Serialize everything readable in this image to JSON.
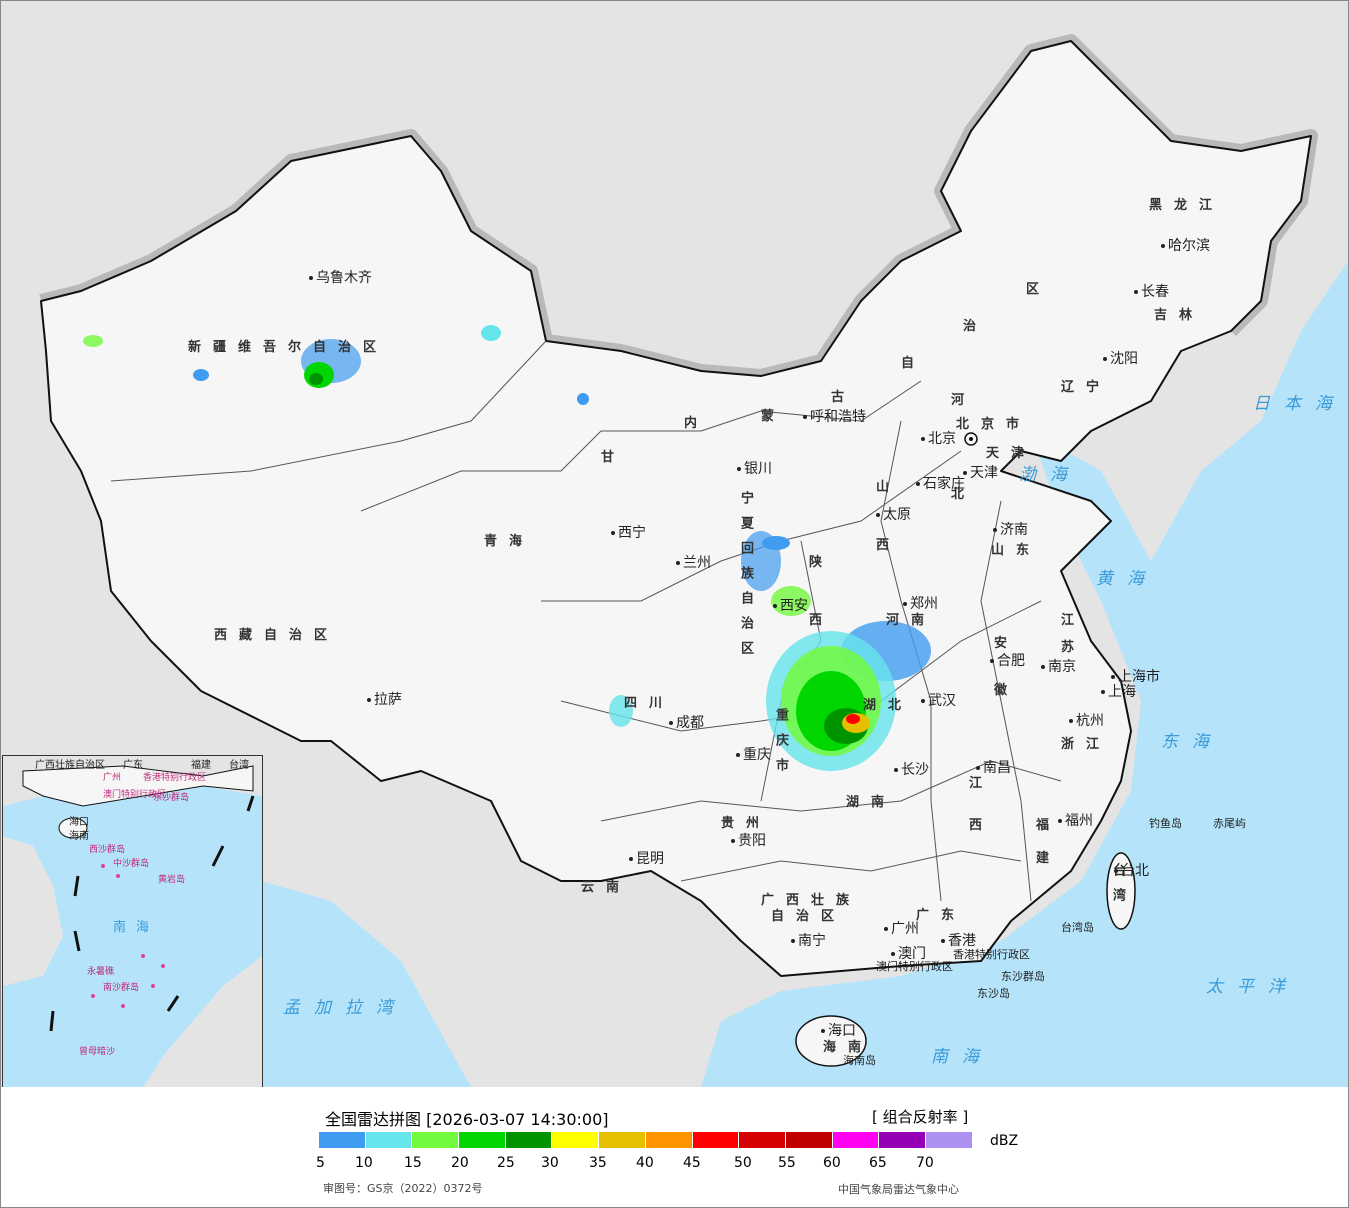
{
  "title": "全国雷达拼图 [2026-03-07 14:30:00]",
  "product": "[ 组合反射率 ]",
  "unit": "dBZ",
  "approval": "审图号：GS京（2022）0372号",
  "source": "中国气象局雷达气象中心",
  "legend": {
    "ticks": [
      "5",
      "10",
      "15",
      "20",
      "25",
      "30",
      "35",
      "40",
      "45",
      "50",
      "55",
      "60",
      "65",
      "70"
    ],
    "colors": [
      "#409cf0",
      "#66e4ec",
      "#72fa3e",
      "#00d700",
      "#009300",
      "#ffff00",
      "#e6c000",
      "#ff9400",
      "#ff0000",
      "#d60000",
      "#c00000",
      "#ff00f0",
      "#9600b4",
      "#ae90f0"
    ]
  },
  "map_colors": {
    "sea": "#b5e4fa",
    "land_foreign": "#e4e4e4",
    "land_china": "#f6f6f6",
    "border": "#111111",
    "sea_label": "#3a9ad9"
  },
  "provinces": [
    "新疆维吾尔自治区",
    "西藏自治区",
    "青海",
    "甘",
    "内",
    "蒙",
    "古",
    "自",
    "治",
    "区",
    "黑龙江",
    "吉林",
    "辽宁",
    "河",
    "北",
    "山",
    "西",
    "陕",
    "西",
    "山东",
    "河南",
    "江",
    "苏",
    "安",
    "徽",
    "湖北",
    "湖南",
    "江",
    "西",
    "浙江",
    "福",
    "建",
    "四川",
    "重庆市",
    "贵州",
    "云南",
    "广西壮族",
    "自治区",
    "广东",
    "海南",
    "台湾",
    "宁夏回族自治区",
    "天津",
    "北京市"
  ],
  "cities": [
    "乌鲁木齐",
    "拉萨",
    "西宁",
    "兰州",
    "银川",
    "呼和浩特",
    "北京",
    "天津",
    "石家庄",
    "太原",
    "济南",
    "郑州",
    "西安",
    "合肥",
    "南京",
    "上海市",
    "上海",
    "杭州",
    "武汉",
    "成都",
    "重庆",
    "长沙",
    "南昌",
    "贵阳",
    "昆明",
    "南宁",
    "广州",
    "澳门",
    "香港",
    "福州",
    "台北",
    "哈尔滨",
    "长春",
    "沈阳",
    "海口"
  ],
  "other_labels": [
    "香港特别行政区",
    "澳门特别行政区",
    "东沙群岛",
    "东沙岛",
    "钓鱼岛",
    "赤尾屿",
    "台湾岛",
    "海南岛"
  ],
  "seas": [
    "日本海",
    "渤海",
    "黄海",
    "东海",
    "太平洋",
    "南海",
    "孟加拉湾"
  ],
  "inset_labels": [
    "广西壮族自治区",
    "广东",
    "福建",
    "台湾",
    "广州",
    "香港特别行政区",
    "澳门特别行政区",
    "东沙群岛",
    "海口",
    "海南",
    "西沙群岛",
    "中沙群岛",
    "黄岩岛",
    "南海",
    "永暑礁",
    "南沙群岛",
    "曾母暗沙"
  ]
}
